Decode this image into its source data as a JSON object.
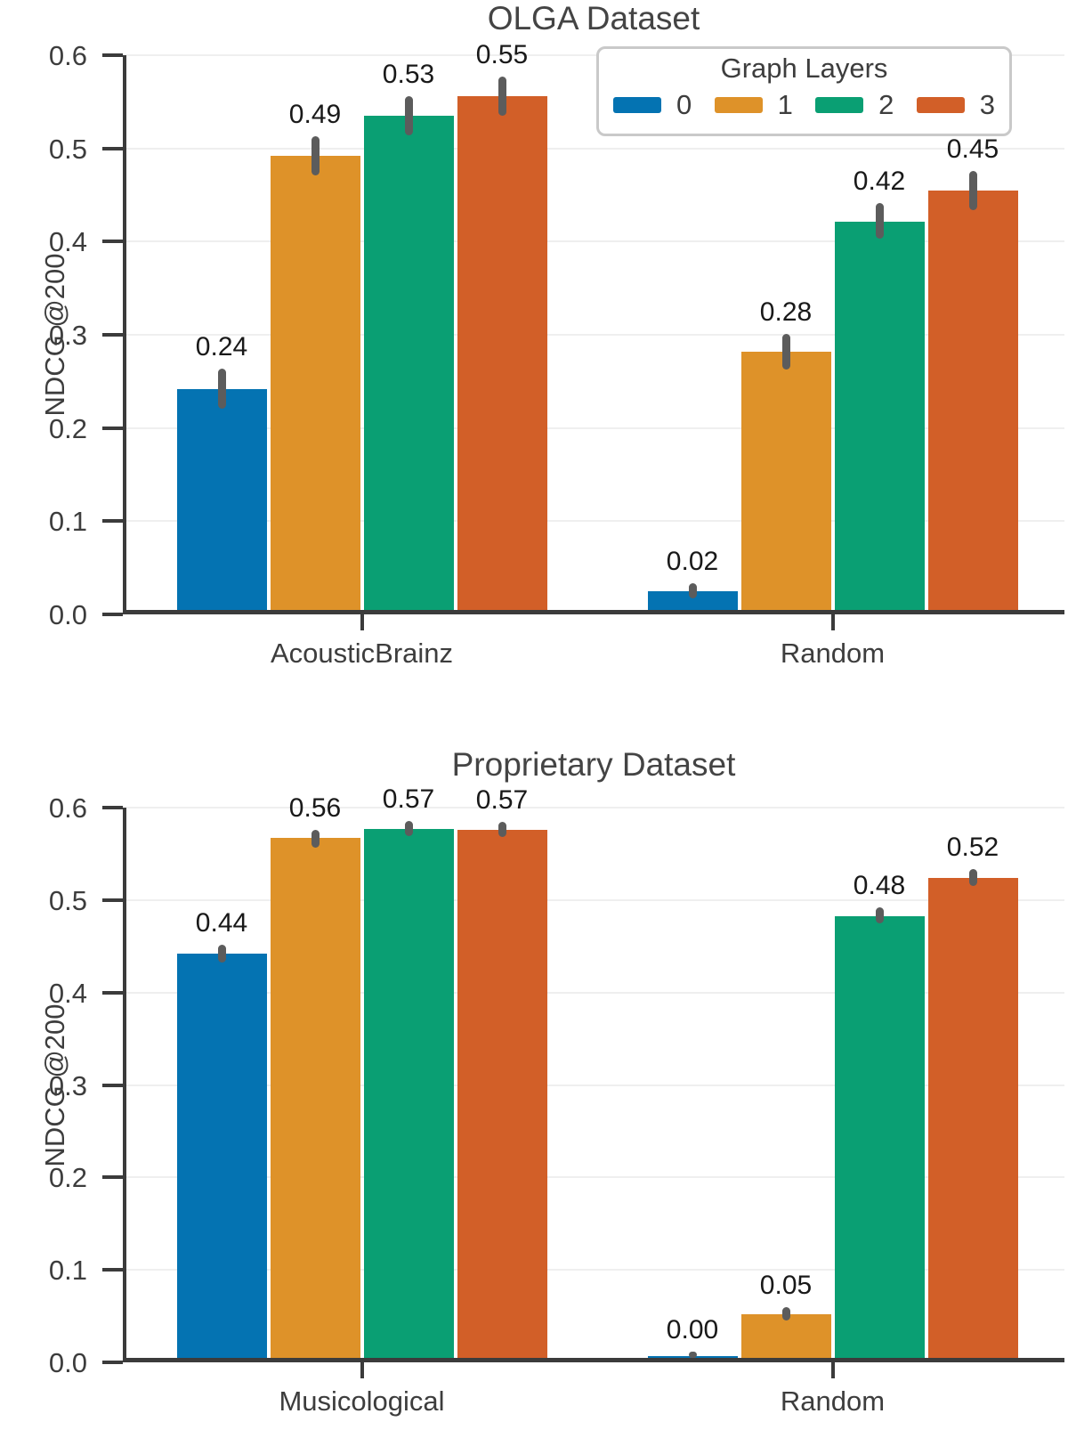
{
  "figure_ylabel": "NDCG @200",
  "legend": {
    "title": "Graph Layers",
    "entries": [
      {
        "label": "0",
        "color": "#0473B2"
      },
      {
        "label": "1",
        "color": "#DE9229"
      },
      {
        "label": "2",
        "color": "#0A9F73"
      },
      {
        "label": "3",
        "color": "#D25F28"
      }
    ]
  },
  "style_colors": {
    "axis_spine": "#3b3b3b",
    "grid": "#efefef",
    "error_bar": "#5c5c5c",
    "text": "#3d3d3d",
    "bar_label_text": "#191919",
    "legend_border": "#c9c9c9"
  },
  "chart_data": [
    {
      "type": "bar",
      "title": "OLGA Dataset",
      "ylabel": "NDCG @200",
      "ylim": [
        0,
        0.6
      ],
      "yticks": [
        0.0,
        0.1,
        0.2,
        0.3,
        0.4,
        0.5,
        0.6
      ],
      "grid": "horizontal",
      "legend_position": "upper right",
      "categories": [
        "AcousticBrainz",
        "Random"
      ],
      "series": [
        {
          "name": "0",
          "color": "#0473B2",
          "values": [
            0.237,
            0.02
          ],
          "labels": [
            "0.24",
            "0.02"
          ],
          "errors": [
            [
              0.216,
              0.259
            ],
            [
              0.012,
              0.029
            ]
          ]
        },
        {
          "name": "1",
          "color": "#DE9229",
          "values": [
            0.487,
            0.277
          ],
          "labels": [
            "0.49",
            "0.28"
          ],
          "errors": [
            [
              0.466,
              0.508
            ],
            [
              0.258,
              0.296
            ]
          ]
        },
        {
          "name": "2",
          "color": "#0A9F73",
          "values": [
            0.53,
            0.417
          ],
          "labels": [
            "0.53",
            "0.42"
          ],
          "errors": [
            [
              0.509,
              0.551
            ],
            [
              0.398,
              0.437
            ]
          ]
        },
        {
          "name": "3",
          "color": "#D25F28",
          "values": [
            0.551,
            0.45
          ],
          "labels": [
            "0.55",
            "0.45"
          ],
          "errors": [
            [
              0.53,
              0.572
            ],
            [
              0.429,
              0.471
            ]
          ]
        }
      ]
    },
    {
      "type": "bar",
      "title": "Proprietary Dataset",
      "ylabel": "NDCG @200",
      "ylim": [
        0,
        0.6
      ],
      "yticks": [
        0.0,
        0.1,
        0.2,
        0.3,
        0.4,
        0.5,
        0.6
      ],
      "grid": "horizontal",
      "legend_position": "none",
      "categories": [
        "Musicological",
        "Random"
      ],
      "series": [
        {
          "name": "0",
          "color": "#0473B2",
          "values": [
            0.437,
            0.002
          ],
          "labels": [
            "0.44",
            "0.00"
          ],
          "errors": [
            [
              0.428,
              0.447
            ],
            [
              0.0,
              0.007
            ]
          ]
        },
        {
          "name": "1",
          "color": "#DE9229",
          "values": [
            0.562,
            0.047
          ],
          "labels": [
            "0.56",
            "0.05"
          ],
          "errors": [
            [
              0.552,
              0.571
            ],
            [
              0.04,
              0.055
            ]
          ]
        },
        {
          "name": "2",
          "color": "#0A9F73",
          "values": [
            0.572,
            0.478
          ],
          "labels": [
            "0.57",
            "0.48"
          ],
          "errors": [
            [
              0.564,
              0.581
            ],
            [
              0.47,
              0.487
            ]
          ]
        },
        {
          "name": "3",
          "color": "#D25F28",
          "values": [
            0.571,
            0.519
          ],
          "labels": [
            "0.57",
            "0.52"
          ],
          "errors": [
            [
              0.563,
              0.58
            ],
            [
              0.51,
              0.529
            ]
          ]
        }
      ]
    }
  ]
}
